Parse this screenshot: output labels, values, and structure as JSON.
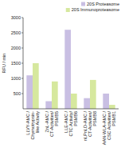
{
  "chart_data": {
    "type": "bar",
    "categories": [
      "LLVY-AMC /\nChymotrypsin-\nlike Activity",
      "ZnL-AMC /\nCT-Activities/\nPSMB5",
      "LLE-AMC /\nCTC Activity/\nPSMB6",
      "nLPnLD-AMC /\nCT-Activities/\nPSMB8",
      "AAN-WLA-AMC /\nCSC Activities/\nPSMB1"
    ],
    "series": [
      {
        "name": "20S Proteasome",
        "color": "#c9bfe3",
        "values": [
          1100,
          250,
          2600,
          350,
          500
        ]
      },
      {
        "name": "20S Immunoproteasome",
        "color": "#d6e89e",
        "values": [
          1500,
          900,
          500,
          950,
          130
        ]
      }
    ],
    "ylabel": "RFU / min",
    "ylim": [
      0,
      3000
    ],
    "yticks": [
      500,
      1000,
      1500,
      2000,
      2500,
      3000
    ],
    "grid": false,
    "legend": "upper right"
  }
}
